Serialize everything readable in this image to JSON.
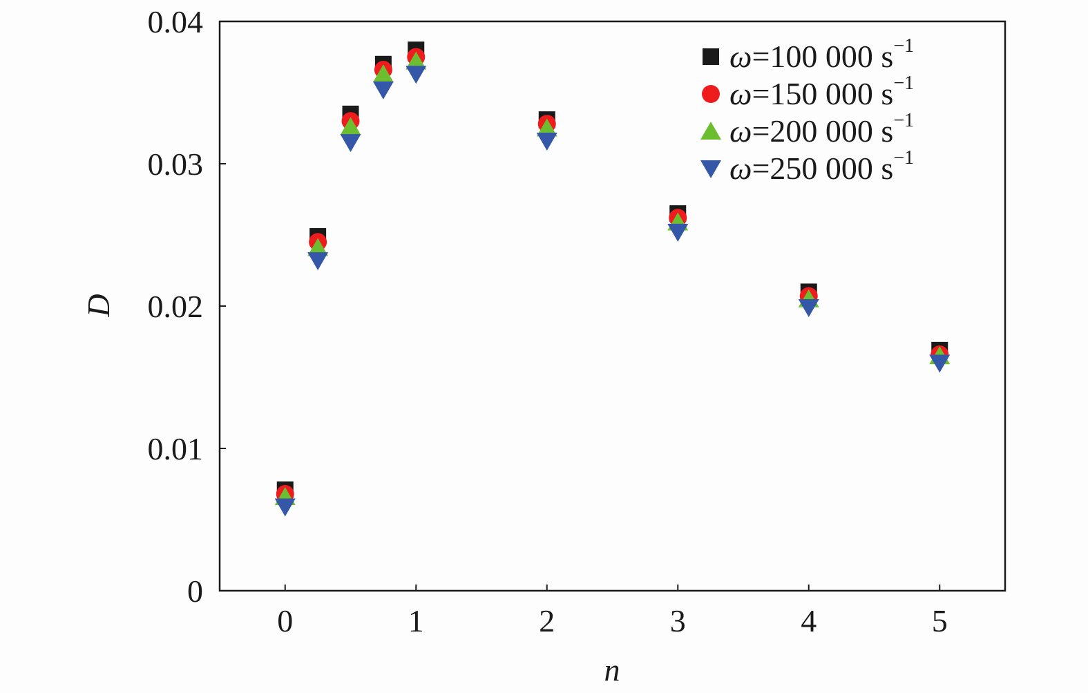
{
  "chart_data": {
    "type": "scatter",
    "title": "",
    "xlabel": "n",
    "ylabel": "D",
    "xlim": [
      -0.5,
      5.5
    ],
    "ylim": [
      0,
      0.04
    ],
    "grid": false,
    "legend_position": "top-right",
    "xticks": [
      {
        "value": 0,
        "label": "0"
      },
      {
        "value": 1,
        "label": "1"
      },
      {
        "value": 2,
        "label": "2"
      },
      {
        "value": 3,
        "label": "3"
      },
      {
        "value": 4,
        "label": "4"
      },
      {
        "value": 5,
        "label": "5"
      }
    ],
    "yticks": [
      {
        "value": 0,
        "label": "0"
      },
      {
        "value": 0.01,
        "label": "0.01"
      },
      {
        "value": 0.02,
        "label": "0.02"
      },
      {
        "value": 0.03,
        "label": "0.03"
      },
      {
        "value": 0.04,
        "label": "0.04"
      }
    ],
    "x": [
      0,
      0.25,
      0.5,
      0.75,
      1,
      2,
      3,
      4,
      5
    ],
    "series": [
      {
        "name_symbol": "ω",
        "name_value": "=100 000 s",
        "name_sup": "−1",
        "marker": "square",
        "color": "#1a1a1a",
        "values": [
          0.0071,
          0.0249,
          0.0335,
          0.037,
          0.038,
          0.0331,
          0.0265,
          0.021,
          0.0169
        ]
      },
      {
        "name_symbol": "ω",
        "name_value": "=150 000 s",
        "name_sup": "−1",
        "marker": "circle",
        "color": "#ee1c1c",
        "values": [
          0.0068,
          0.0245,
          0.033,
          0.0366,
          0.0375,
          0.0328,
          0.0262,
          0.0207,
          0.0166
        ]
      },
      {
        "name_symbol": "ω",
        "name_value": "=200 000 s",
        "name_sup": "−1",
        "marker": "triangle-up",
        "color": "#6cbd2f",
        "values": [
          0.0066,
          0.0241,
          0.0326,
          0.0363,
          0.0372,
          0.0325,
          0.0259,
          0.0205,
          0.0165
        ]
      },
      {
        "name_symbol": "ω",
        "name_value": "=250 000 s",
        "name_sup": "−1",
        "marker": "triangle-down",
        "color": "#3557a8",
        "values": [
          0.0059,
          0.0232,
          0.0315,
          0.0352,
          0.0363,
          0.0316,
          0.0252,
          0.0199,
          0.016
        ]
      }
    ]
  }
}
